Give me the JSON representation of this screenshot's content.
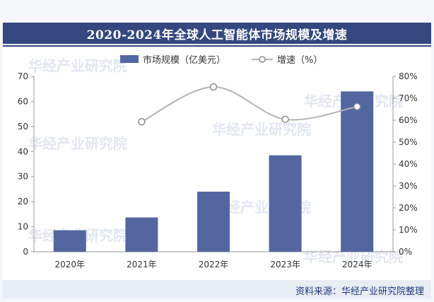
{
  "title": "2020-2024年全球人工智能体市场规模及增速",
  "source": "资料来源：华经产业研究院整理",
  "watermark": "华经产业研究院",
  "colors": {
    "bar": "#5466a0",
    "line": "#b3b3b3",
    "marker_fill": "#ffffff",
    "marker_stroke": "#8c8c8c",
    "title_bg": "#34487f"
  },
  "chart_data": {
    "type": "bar",
    "categories": [
      "2020年",
      "2021年",
      "2022年",
      "2023年",
      "2024年"
    ],
    "series": [
      {
        "name": "市场规模（亿美元）",
        "type": "bar",
        "axis": "left",
        "values": [
          8.6,
          13.7,
          24.0,
          38.5,
          64.0
        ]
      },
      {
        "name": "增速（%）",
        "type": "line",
        "axis": "right",
        "smooth": true,
        "values": [
          null,
          59.3,
          75.2,
          60.4,
          66.2
        ]
      }
    ],
    "y_left": {
      "ticks": [
        "0",
        "10",
        "20",
        "30",
        "40",
        "50",
        "60",
        "70"
      ],
      "range": [
        0,
        70
      ]
    },
    "y_right": {
      "ticks": [
        "0%",
        "10%",
        "20%",
        "30%",
        "40%",
        "50%",
        "60%",
        "70%",
        "80%"
      ],
      "range": [
        0,
        80
      ]
    },
    "legend_position": "top"
  }
}
